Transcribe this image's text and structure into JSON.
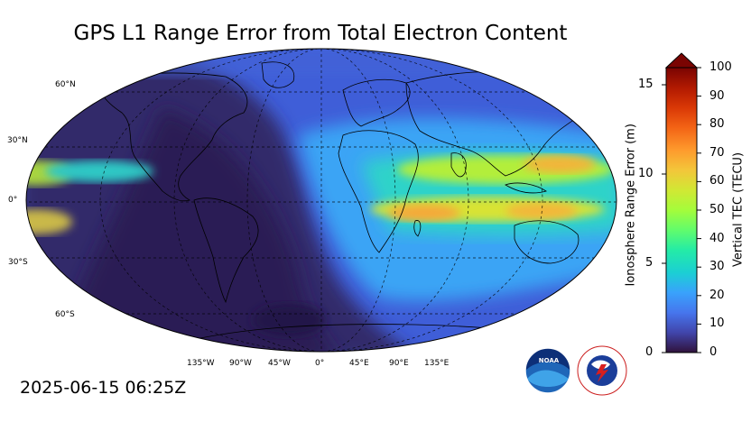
{
  "title": "GPS L1 Range Error from Total Electron Content",
  "timestamp": "2025-06-15 06:25Z",
  "map": {
    "lat_labels": [
      "60°N",
      "30°N",
      "0°",
      "30°S",
      "60°S"
    ],
    "lon_labels": [
      "135°W",
      "90°W",
      "45°W",
      "0°",
      "45°E",
      "90°E",
      "135°E"
    ]
  },
  "colorbar": {
    "tec_label": "Vertical TEC (TECU)",
    "tec_ticks": [
      "0",
      "10",
      "20",
      "30",
      "40",
      "50",
      "60",
      "70",
      "80",
      "90",
      "100"
    ],
    "error_label": "Ionosphere Range Error (m)",
    "error_ticks": [
      "0",
      "5",
      "10",
      "15"
    ],
    "colormap": [
      "#30123b",
      "#4145ab",
      "#4675ed",
      "#39a2fc",
      "#1bcfd4",
      "#24eca6",
      "#61fc6c",
      "#a4fc3b",
      "#d1e834",
      "#f3c63a",
      "#fe9b2d",
      "#f36315",
      "#d93806",
      "#b11901",
      "#7a0402"
    ]
  },
  "logos": {
    "noaa": "NOAA",
    "nws_text": "NATIONAL WEATHER SERVICE"
  }
}
